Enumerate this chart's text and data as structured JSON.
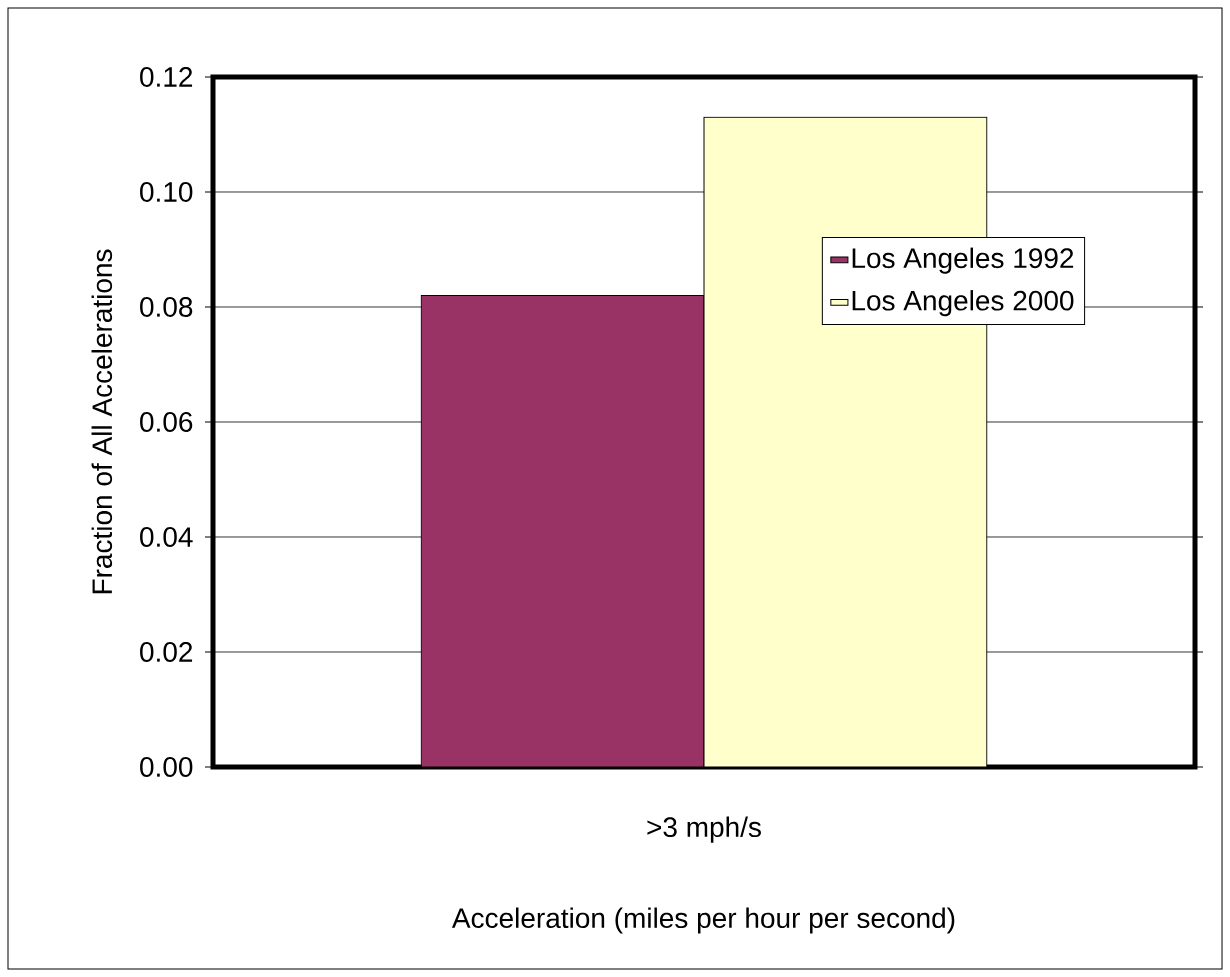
{
  "chart_data": {
    "type": "bar",
    "xlabel": "Acceleration (miles per hour per second)",
    "ylabel": "Fraction of All Accelerations",
    "categories": [
      ">3 mph/s"
    ],
    "series": [
      {
        "name": "Los Angeles 1992",
        "color": "#993366",
        "values": [
          0.082
        ]
      },
      {
        "name": "Los Angeles 2000",
        "color": "#ffffcc",
        "values": [
          0.113
        ]
      }
    ],
    "ylim": [
      0,
      0.12
    ],
    "yticks": [
      {
        "value": 0,
        "label": "0.00"
      },
      {
        "value": 0.02,
        "label": "0.02"
      },
      {
        "value": 0.04,
        "label": "0.04"
      },
      {
        "value": 0.06,
        "label": "0.06"
      },
      {
        "value": 0.08,
        "label": "0.08"
      },
      {
        "value": 0.1,
        "label": "0.10"
      },
      {
        "value": 0.12,
        "label": "0.12"
      }
    ],
    "grid": "y",
    "legend": "right"
  }
}
